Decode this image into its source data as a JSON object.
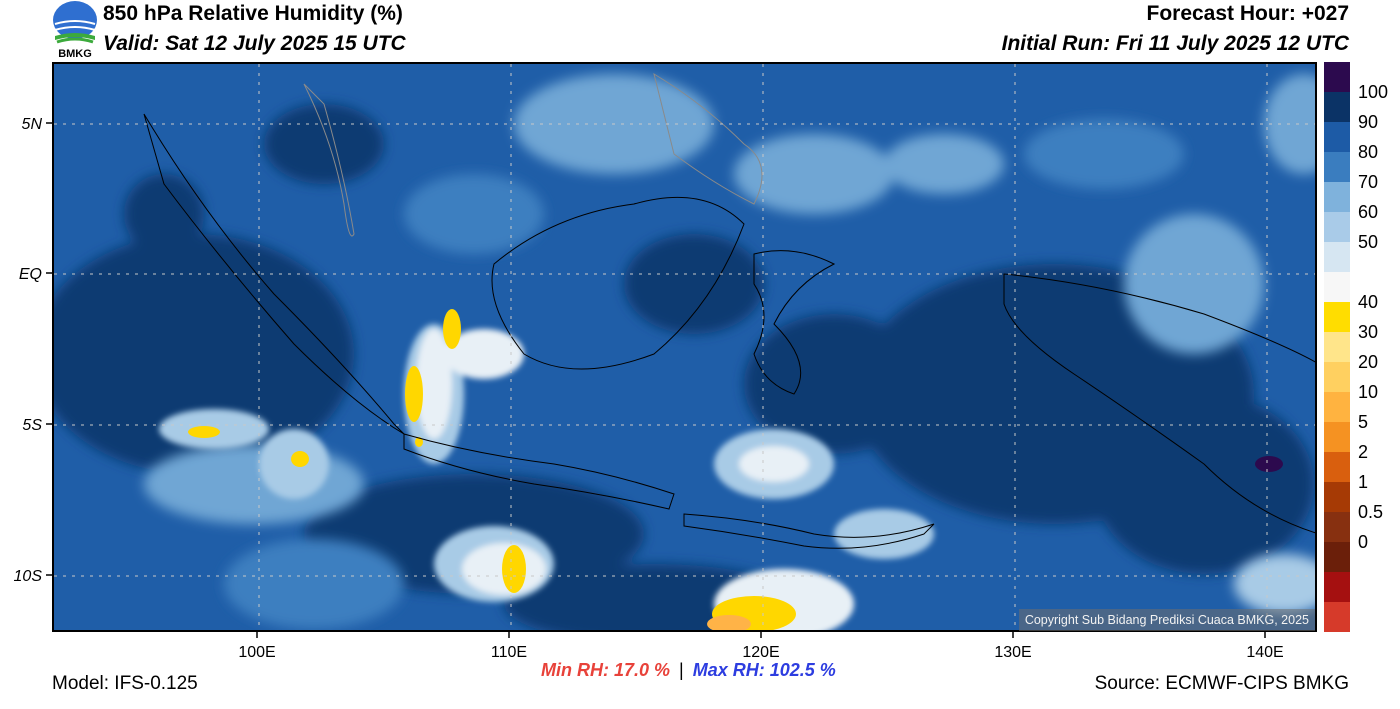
{
  "header": {
    "title": "850 hPa Relative Humidity (%)",
    "valid": "Valid: Sat 12 July 2025 15 UTC",
    "forecast_hour": "Forecast Hour: +027",
    "initial_run": "Initial Run: Fri 11 July 2025 12 UTC",
    "logo_text": "BMKG"
  },
  "footer": {
    "model": "Model: IFS-0.125",
    "source": "Source: ECMWF-CIPS BMKG",
    "min_rh": "Min RH:  17.0 %",
    "separator": "|",
    "max_rh": "Max RH: 102.5 %",
    "copyright": "Copyright Sub Bidang Prediksi Cuaca BMKG, 2025"
  },
  "map": {
    "lon_ticks": [
      "100E",
      "110E",
      "120E",
      "130E",
      "140E"
    ],
    "lat_ticks": [
      "5N",
      "EQ",
      "5S",
      "10S"
    ],
    "colors": {
      "ocean_base": "#1f5ea8",
      "deep": "#0c3a72",
      "mid": "#3d7fc0",
      "light": "#6fa6d4",
      "pale": "#a8cbe6",
      "white": "#e8f0f6",
      "yellow": "#ffd700",
      "orange": "#ffb347"
    }
  },
  "colorbar": {
    "labels": [
      "100",
      "90",
      "80",
      "70",
      "60",
      "50",
      "40",
      "30",
      "20",
      "10",
      "5",
      "2",
      "1",
      "0.5",
      "0"
    ],
    "colors": [
      "#2c0a4e",
      "#0b3366",
      "#1d5ba6",
      "#3a7dbf",
      "#7fb2dc",
      "#a9cbe8",
      "#d6e6f2",
      "#f7f7f7",
      "#ffdd00",
      "#ffe58a",
      "#ffd060",
      "#ffb340",
      "#f59222",
      "#d95f0e",
      "#a63a05",
      "#873010",
      "#6b1f0a",
      "#a51010",
      "#d63a2a"
    ]
  }
}
